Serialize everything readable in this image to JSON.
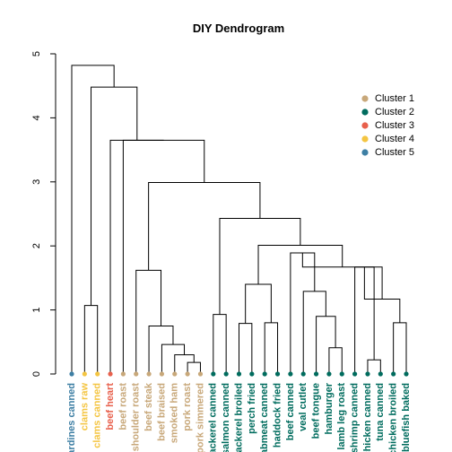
{
  "chart_data": {
    "type": "dendrogram",
    "title": "DIY Dendrogram",
    "ylim": [
      0,
      5
    ],
    "yticks": [
      0,
      1,
      2,
      3,
      4,
      5
    ],
    "leaves": [
      {
        "label": "sardines canned",
        "cluster": 5
      },
      {
        "label": "clams raw",
        "cluster": 4
      },
      {
        "label": "clams canned",
        "cluster": 4
      },
      {
        "label": "beef heart",
        "cluster": 3
      },
      {
        "label": "beef roast",
        "cluster": 1
      },
      {
        "label": "shoulder roast",
        "cluster": 1
      },
      {
        "label": "beef steak",
        "cluster": 1
      },
      {
        "label": "beef braised",
        "cluster": 1
      },
      {
        "label": "smoked ham",
        "cluster": 1
      },
      {
        "label": "pork roast",
        "cluster": 1
      },
      {
        "label": "pork simmered",
        "cluster": 1
      },
      {
        "label": "mackerel canned",
        "cluster": 2
      },
      {
        "label": "salmon canned",
        "cluster": 2
      },
      {
        "label": "mackerel broiled",
        "cluster": 2
      },
      {
        "label": "perch fried",
        "cluster": 2
      },
      {
        "label": "crabmeat canned",
        "cluster": 2
      },
      {
        "label": "haddock fried",
        "cluster": 2
      },
      {
        "label": "beef canned",
        "cluster": 2
      },
      {
        "label": "veal cutlet",
        "cluster": 2
      },
      {
        "label": "beef tongue",
        "cluster": 2
      },
      {
        "label": "hamburger",
        "cluster": 2
      },
      {
        "label": "lamb leg roast",
        "cluster": 2
      },
      {
        "label": "shrimp canned",
        "cluster": 2
      },
      {
        "label": "chicken canned",
        "cluster": 2
      },
      {
        "label": "tuna canned",
        "cluster": 2
      },
      {
        "label": "chicken broiled",
        "cluster": 2
      },
      {
        "label": "bluefish baked",
        "cluster": 2
      }
    ],
    "merges": [
      {
        "a": 9,
        "b": 10,
        "height": 0.18
      },
      {
        "a": 8,
        "b": "m0",
        "height": 0.3
      },
      {
        "a": 7,
        "b": "m1",
        "height": 0.46
      },
      {
        "a": 6,
        "b": "m2",
        "height": 0.75
      },
      {
        "a": 5,
        "b": "m3",
        "height": 1.62
      },
      {
        "a": 23,
        "b": 24,
        "height": 0.22
      },
      {
        "a": 22,
        "b": "m5",
        "height": 1.67
      },
      {
        "a": 20,
        "b": 21,
        "height": 0.41
      },
      {
        "a": 19,
        "b": "m7",
        "height": 0.9
      },
      {
        "a": 18,
        "b": "m8",
        "height": 1.29
      },
      {
        "a": 17,
        "b": "m9",
        "height": 1.89
      },
      {
        "a": 25,
        "b": 26,
        "height": 0.8
      },
      {
        "a": "m6",
        "b": "m11",
        "height": 1.17
      },
      {
        "a": "m12",
        "b": "m10",
        "height": 1.67
      },
      {
        "a": 15,
        "b": 16,
        "height": 0.8
      },
      {
        "a": 13,
        "b": 14,
        "height": 0.79
      },
      {
        "a": "m15",
        "b": "m14",
        "height": 1.4
      },
      {
        "a": "m16",
        "b": "m13",
        "height": 2.01
      },
      {
        "a": 11,
        "b": 12,
        "height": 0.93
      },
      {
        "a": "m18",
        "b": "m17",
        "height": 2.43
      },
      {
        "a": "m4",
        "b": "m19",
        "height": 2.99
      },
      {
        "a": 4,
        "b": "m20",
        "height": 3.65
      },
      {
        "a": 3,
        "b": "m21",
        "height": 3.65
      },
      {
        "a": 1,
        "b": 2,
        "height": 1.07
      },
      {
        "a": "m23",
        "b": "m22",
        "height": 4.48
      },
      {
        "a": 0,
        "b": "m24",
        "height": 4.82
      }
    ],
    "legend": {
      "placement": "top-right",
      "entries": [
        {
          "label": "Cluster 1",
          "color": "#C8A87A"
        },
        {
          "label": "Cluster 2",
          "color": "#006C5E"
        },
        {
          "label": "Cluster 3",
          "color": "#E8604C"
        },
        {
          "label": "Cluster 4",
          "color": "#F4C542"
        },
        {
          "label": "Cluster 5",
          "color": "#3E7FA4"
        }
      ]
    }
  }
}
